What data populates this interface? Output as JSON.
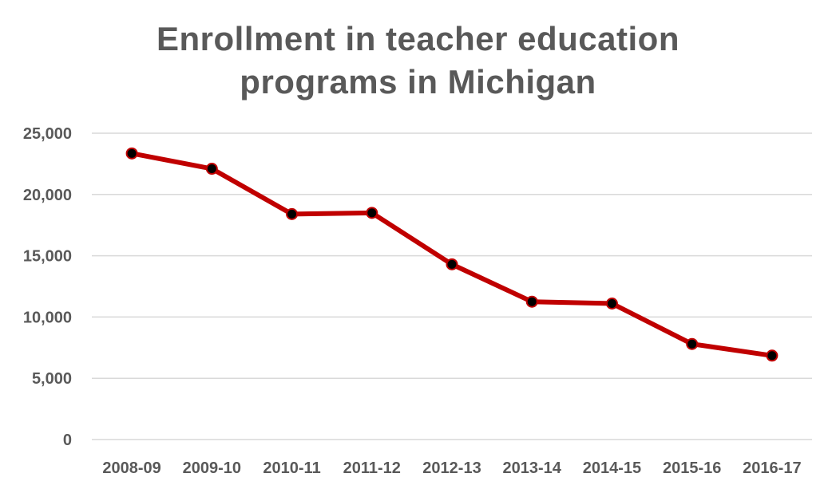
{
  "chart_data": {
    "type": "line",
    "title_lines": [
      "Enrollment in teacher education",
      "programs in Michigan"
    ],
    "categories": [
      "2008-09",
      "2009-10",
      "2010-11",
      "2011-12",
      "2012-13",
      "2013-14",
      "2014-15",
      "2015-16",
      "2016-17"
    ],
    "series": [
      {
        "values": [
          23350,
          22100,
          18400,
          18500,
          14300,
          11250,
          11100,
          7800,
          6850
        ]
      }
    ],
    "yticks": [
      0,
      5000,
      10000,
      15000,
      20000,
      25000
    ],
    "ytick_labels": [
      "0",
      "5,000",
      "10,000",
      "15,000",
      "20,000",
      "25,000"
    ],
    "ylim": [
      0,
      25000
    ],
    "grid": true,
    "legend": "none",
    "colors": {
      "line": "#c00000",
      "marker": "#000000",
      "grid": "#d9d9d9",
      "text": "#595959"
    }
  }
}
